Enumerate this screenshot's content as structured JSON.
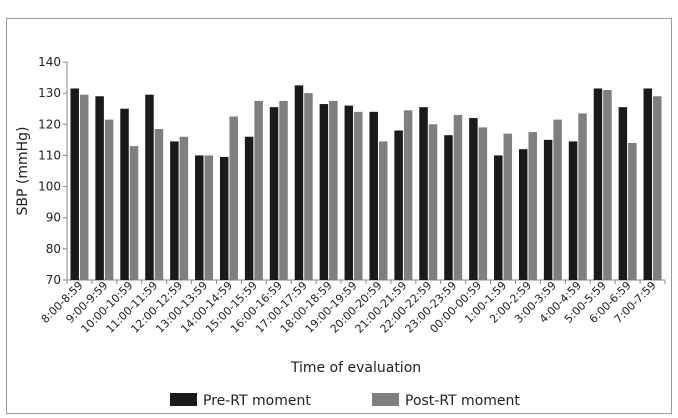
{
  "chart_data": {
    "type": "bar",
    "title": "",
    "xlabel": "Time of evaluation",
    "ylabel": "SBP (mmHg)",
    "ylim": [
      70,
      140
    ],
    "yticks": [
      70,
      80,
      90,
      100,
      110,
      120,
      130,
      140
    ],
    "grid": false,
    "legend_position": "bottom",
    "categories": [
      "8:00-8:59",
      "9:00-9:59",
      "10:00-10:59",
      "11:00-11:59",
      "12:00-12:59",
      "13:00-13:59",
      "14:00-14:59",
      "15:00-15:59",
      "16:00-16:59",
      "17:00-17:59",
      "18:00-18:59",
      "19:00-19:59",
      "20:00-20:59",
      "21:00-21:59",
      "22:00-22:59",
      "23:00-23:59",
      "00:00-00:59",
      "1:00-1:59",
      "2:00-2:59",
      "3:00-3:59",
      "4:00-4:59",
      "5:00-5:59",
      "6:00-6:59",
      "7:00-7:59"
    ],
    "series": [
      {
        "name": "Pre-RT moment",
        "color": "#1a1a1a",
        "values": [
          131.5,
          129,
          125,
          129.5,
          114.5,
          110,
          109.5,
          116,
          125.5,
          132.5,
          126.5,
          126,
          124,
          118,
          125.5,
          116.5,
          122,
          110,
          112,
          115,
          114.5,
          131.5,
          125.5,
          131.5
        ]
      },
      {
        "name": "Post-RT moment",
        "color": "#7f7f7f",
        "values": [
          129.5,
          121.5,
          113,
          118.5,
          116,
          110,
          122.5,
          127.5,
          127.5,
          130,
          127.5,
          124,
          114.5,
          124.5,
          120,
          123,
          119,
          117,
          117.5,
          121.5,
          123.5,
          131,
          114,
          129
        ]
      }
    ]
  }
}
